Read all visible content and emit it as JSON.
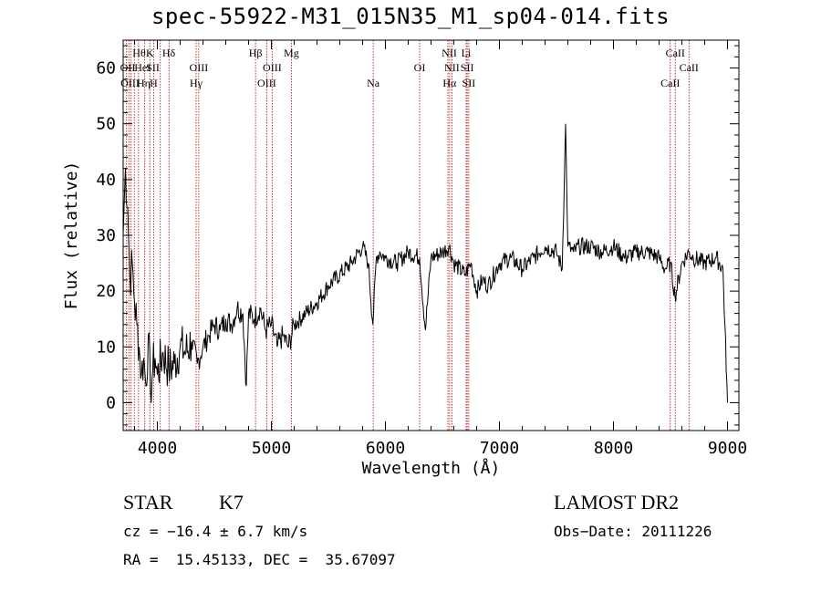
{
  "chart_data": {
    "type": "line",
    "title": "spec-55922-M31_015N35_M1_sp04-014.fits",
    "xlabel": "Wavelength (Å)",
    "ylabel": "Flux (relative)",
    "xlim": [
      3700,
      9100
    ],
    "ylim": [
      -5,
      65
    ],
    "xticks": [
      4000,
      5000,
      6000,
      7000,
      8000,
      9000
    ],
    "yticks": [
      0,
      10,
      20,
      30,
      40,
      50,
      60
    ],
    "grid": false,
    "series": [
      {
        "x": [
          3700,
          3720,
          3740,
          3760,
          3780,
          3800,
          3820,
          3840,
          3860,
          3880,
          3900,
          3920,
          3940,
          3960,
          3980,
          4000,
          4050,
          4100,
          4150,
          4200,
          4250,
          4300,
          4350,
          4400,
          4450,
          4500,
          4550,
          4600,
          4650,
          4700,
          4750,
          4780,
          4800,
          4850,
          4900,
          4950,
          5000,
          5050,
          5100,
          5150,
          5200,
          5300,
          5400,
          5500,
          5600,
          5700,
          5800,
          5850,
          5890,
          5920,
          5950,
          6000,
          6100,
          6200,
          6300,
          6350,
          6400,
          6500,
          6560,
          6600,
          6700,
          6750,
          6800,
          6850,
          6900,
          7000,
          7100,
          7200,
          7300,
          7400,
          7500,
          7550,
          7580,
          7600,
          7650,
          7700,
          7800,
          7900,
          8000,
          8100,
          8200,
          8300,
          8400,
          8450,
          8500,
          8540,
          8600,
          8660,
          8700,
          8800,
          8900,
          8960,
          9000
        ],
        "y": [
          30,
          42,
          35,
          22,
          25,
          18,
          14,
          10,
          5,
          8,
          3,
          12,
          2,
          6,
          8,
          5,
          9,
          6,
          7,
          10,
          9,
          11,
          7,
          10,
          12,
          14,
          13,
          15,
          14,
          17,
          16,
          3,
          16,
          15,
          17,
          13,
          14,
          10,
          12,
          10,
          14,
          16,
          18,
          21,
          23,
          25,
          28,
          25,
          14,
          26,
          27,
          26,
          25,
          27,
          26,
          13,
          26,
          27,
          28,
          25,
          23,
          25,
          20,
          22,
          21,
          25,
          26,
          24,
          26,
          28,
          27,
          24,
          50,
          28,
          27,
          28,
          28,
          27,
          28,
          26,
          27,
          27,
          26,
          24,
          25,
          19,
          25,
          27,
          26,
          25,
          26,
          24,
          0
        ]
      }
    ],
    "lines_top": [
      "Hθ",
      "K",
      "Hδ",
      "Hβ",
      "Mg",
      "NII",
      "Li",
      "CaII"
    ],
    "lines_mid": [
      "OII",
      "HeI",
      "SII",
      "OIII",
      "OIII",
      "OI",
      "NII",
      "SII",
      "CaII"
    ],
    "lines_bot": [
      "OIII",
      "Hη",
      "H",
      "Hγ",
      "OIII",
      "Na",
      "Hα",
      "SII",
      "CaII"
    ]
  },
  "info": {
    "class": "STAR",
    "subclass": "K7",
    "cz": "cz = −16.4 ± 6.7 km/s",
    "radec": "RA =  15.45133, DEC =  35.67097",
    "survey": "LAMOST DR2",
    "obsdate": "Obs−Date: 20111226"
  }
}
